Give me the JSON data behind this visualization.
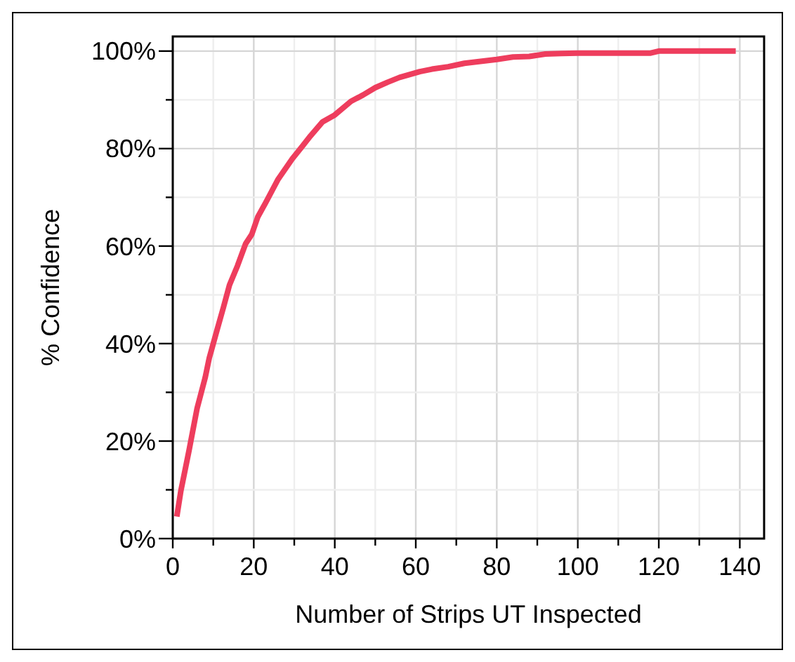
{
  "chart_data": {
    "type": "line",
    "xlabel": "Number of Strips UT Inspected",
    "ylabel": "% Confidence",
    "x": [
      1,
      2,
      4,
      6,
      8,
      9,
      11,
      12.5,
      14,
      16,
      18,
      19.5,
      21,
      23,
      26,
      29.5,
      32,
      34,
      37,
      40,
      44,
      47,
      50,
      53,
      56,
      61,
      64,
      68,
      72,
      76,
      80,
      84,
      88,
      92,
      96,
      100,
      110,
      118,
      120,
      125,
      130,
      139
    ],
    "series": [
      {
        "color": "#ee3d5d",
        "values": [
          4.5,
          9.8,
          18,
          26.7,
          33,
          37,
          43,
          47.4,
          52,
          56,
          60.5,
          62.4,
          66,
          69,
          73.7,
          77.9,
          80.5,
          82.6,
          85.5,
          86.9,
          89.7,
          91,
          92.5,
          93.6,
          94.6,
          95.8,
          96.3,
          96.8,
          97.5,
          97.9,
          98.3,
          98.8,
          98.9,
          99.4,
          99.5,
          99.6,
          99.6,
          99.6,
          100,
          100,
          100,
          100
        ]
      }
    ],
    "xlim": [
      0,
      146
    ],
    "ylim": [
      0,
      103
    ],
    "xticks": [
      0,
      {
        "value": 10,
        "label": null
      },
      20,
      {
        "value": 30,
        "label": null
      },
      40,
      {
        "value": 50,
        "label": null
      },
      60,
      {
        "value": 70,
        "label": null
      },
      80,
      {
        "value": 90,
        "label": null
      },
      100,
      {
        "value": 110,
        "label": null
      },
      120,
      {
        "value": 130,
        "label": null
      },
      140
    ],
    "yticks": [
      {
        "value": 0,
        "label": "0%"
      },
      {
        "value": 10,
        "label": null
      },
      {
        "value": 20,
        "label": "20%"
      },
      {
        "value": 30,
        "label": null
      },
      {
        "value": 40,
        "label": "40%"
      },
      {
        "value": 50,
        "label": null
      },
      {
        "value": 60,
        "label": "60%"
      },
      {
        "value": 70,
        "label": null
      },
      {
        "value": 80,
        "label": "80%"
      },
      {
        "value": 90,
        "label": null
      },
      {
        "value": 100,
        "label": "100%"
      }
    ],
    "grid": true,
    "line_style": "solid",
    "marker": "none"
  }
}
